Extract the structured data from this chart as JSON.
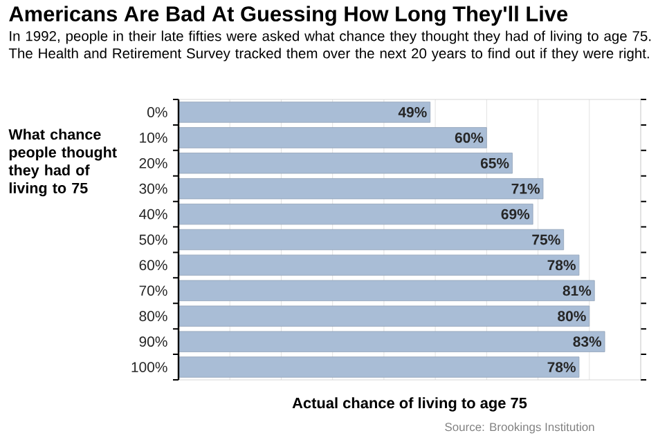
{
  "chart_data": {
    "type": "bar",
    "orientation": "horizontal",
    "title": "Americans Are Bad At Guessing How Long They'll Live",
    "subtitle": "In 1992, people in their late fifties were asked what chance they thought they had of living to age 75. The Health and Retirement Survey tracked them over the next 20 years to find out if they were right.",
    "xlabel": "Actual chance of living to age 75",
    "ylabel": "What chance people thought they had of living to 75",
    "categories": [
      "0%",
      "10%",
      "20%",
      "30%",
      "40%",
      "50%",
      "60%",
      "70%",
      "80%",
      "90%",
      "100%"
    ],
    "values": [
      49,
      60,
      65,
      71,
      69,
      75,
      78,
      81,
      80,
      83,
      78
    ],
    "value_labels": [
      "49%",
      "60%",
      "65%",
      "71%",
      "69%",
      "75%",
      "78%",
      "81%",
      "80%",
      "83%",
      "78%"
    ],
    "color": "#a9bdd6",
    "xlim": [
      0,
      90
    ],
    "xticks": [
      {
        "value": 0,
        "label": null
      },
      {
        "value": 10,
        "label": null
      },
      {
        "value": 20,
        "label": null
      },
      {
        "value": 30,
        "label": null
      },
      {
        "value": 40,
        "label": null
      },
      {
        "value": 50,
        "label": null
      },
      {
        "value": 60,
        "label": null
      },
      {
        "value": 70,
        "label": null
      },
      {
        "value": 80,
        "label": null
      },
      {
        "value": 90,
        "label": null
      }
    ],
    "grid": "x",
    "tick_labels": "y",
    "annotations": [
      "Source: Brookings Institution"
    ]
  }
}
